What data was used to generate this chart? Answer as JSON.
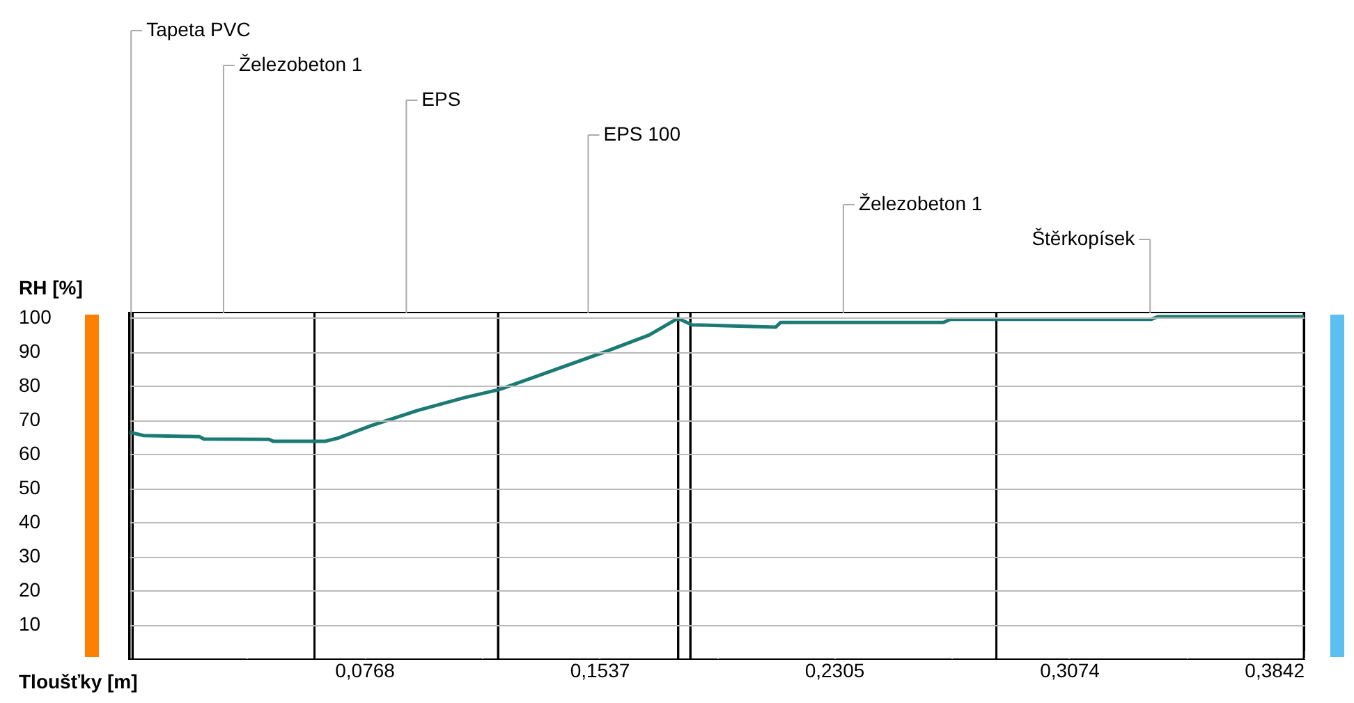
{
  "chart_data": {
    "type": "line",
    "xlabel": "Tloušťky [m]",
    "ylabel": "RH [%]",
    "x": [
      0,
      0.0046,
      0.0228,
      0.0243,
      0.0456,
      0.0471,
      0.0639,
      0.0684,
      0.079,
      0.0943,
      0.1095,
      0.121,
      0.14,
      0.155,
      0.17,
      0.1794,
      0.184,
      0.2114,
      0.213,
      0.2663,
      0.2686,
      0.3342,
      0.3365,
      0.3842
    ],
    "series": [
      {
        "color": "#1b7b74",
        "values": [
          66.4,
          65.4,
          65.1,
          64.4,
          64.3,
          63.7,
          63.7,
          64.7,
          68.3,
          72.8,
          76.5,
          78.9,
          85.0,
          89.8,
          94.9,
          99.8,
          97.9,
          97.2,
          98.6,
          98.6,
          99.5,
          99.5,
          100.3,
          100.3
        ]
      }
    ],
    "xlim": [
      0,
      0.3842
    ],
    "ylim": [
      0,
      101.3
    ],
    "xticks": [
      {
        "value": 0.0384,
        "label": null
      },
      {
        "value": 0.0768,
        "label": "0,0768"
      },
      {
        "value": 0.1153,
        "label": null
      },
      {
        "value": 0.1537,
        "label": "0,1537"
      },
      {
        "value": 0.1921,
        "label": null
      },
      {
        "value": 0.2305,
        "label": "0,2305"
      },
      {
        "value": 0.269,
        "label": null
      },
      {
        "value": 0.3074,
        "label": "0,3074"
      },
      {
        "value": 0.3458,
        "label": null
      },
      {
        "value": 0.3842,
        "label": "0,3842"
      }
    ],
    "yticks": [
      10,
      20,
      30,
      40,
      50,
      60,
      70,
      80,
      90,
      100
    ],
    "grid": "y",
    "bands": [
      {
        "axis": "x",
        "from": 0,
        "to": 0.001,
        "label": "Tapeta PVC",
        "color": "#ffffff"
      },
      {
        "axis": "x",
        "from": 0.001,
        "to": 0.0605,
        "label": "Železobeton 1",
        "color": "#ffffff"
      },
      {
        "axis": "x",
        "from": 0.0605,
        "to": 0.1206,
        "label": "EPS",
        "color": "#ffffff"
      },
      {
        "axis": "x",
        "from": 0.1206,
        "to": 0.1795,
        "label": "EPS 100",
        "color": "#ffffff"
      },
      {
        "axis": "x",
        "from": 0.1795,
        "to": 0.1835,
        "label": null,
        "color": "#ffffff"
      },
      {
        "axis": "x",
        "from": 0.1835,
        "to": 0.2836,
        "label": "Železobeton 1",
        "color": "#ffffff"
      },
      {
        "axis": "x",
        "from": 0.2836,
        "to": 0.3842,
        "label": "Štěrkopísek",
        "color": "#ffffff"
      }
    ]
  }
}
